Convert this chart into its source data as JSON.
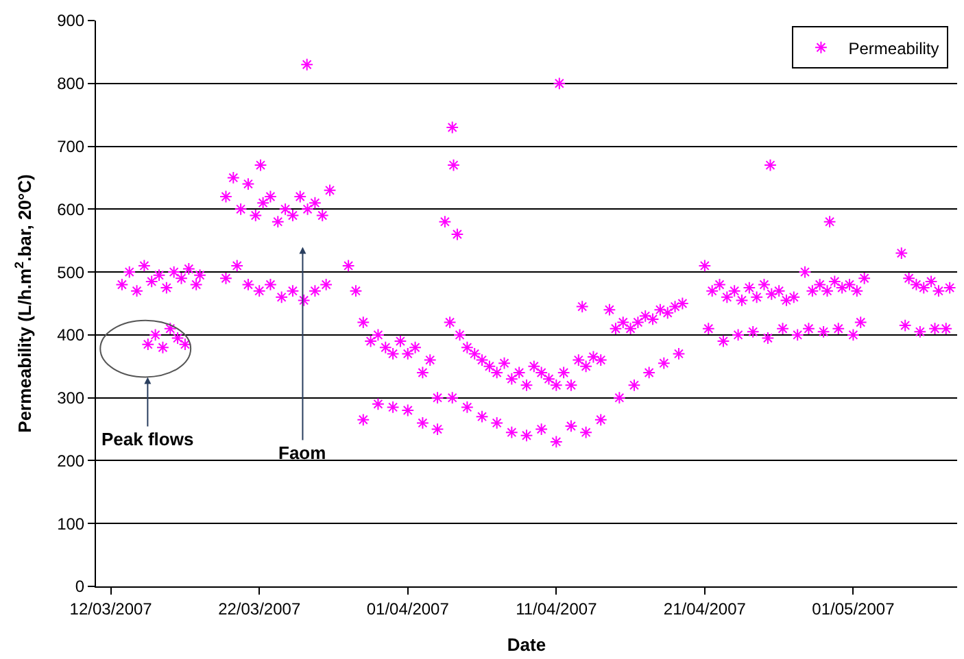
{
  "chart_data": {
    "type": "scatter",
    "xlabel": "Date",
    "ylabel": "Permeability (L/h.m$^{2}$.bar, 20°C)",
    "xlim": [
      "2007-03-11T00:00",
      "2007-05-08"
    ],
    "xticks": [
      {
        "value": "2007-03-12",
        "label": "12/03/2007"
      },
      {
        "value": "2007-03-22",
        "label": "22/03/2007"
      },
      {
        "value": "2007-04-01",
        "label": "01/04/2007"
      },
      {
        "value": "2007-04-11",
        "label": "11/04/2007"
      },
      {
        "value": "2007-04-21",
        "label": "21/04/2007"
      },
      {
        "value": "2007-05-01",
        "label": "01/05/2007"
      }
    ],
    "ylim": [
      0,
      900
    ],
    "yticks": [
      0,
      100,
      200,
      300,
      400,
      500,
      600,
      700,
      800,
      900
    ],
    "grid": "y",
    "legend": "top right",
    "marker": "cross",
    "annotations": [
      "Peak flows",
      "Faom"
    ],
    "series": [
      {
        "name": "Permeability",
        "color": "#ff00ff",
        "x": [
          "2007-03-12T18:00",
          "2007-03-13T06:00",
          "2007-03-13T18:00",
          "2007-03-14T06:00",
          "2007-03-14T18:00",
          "2007-03-15T06:00",
          "2007-03-15T18:00",
          "2007-03-16T06:00",
          "2007-03-16T18:00",
          "2007-03-17T06:00",
          "2007-03-17T18:00",
          "2007-03-18T00:00",
          "2007-03-14T12:00",
          "2007-03-15T00:00",
          "2007-03-15T12:00",
          "2007-03-16T00:00",
          "2007-03-16T12:00",
          "2007-03-17T00:00",
          "2007-03-19T18:00",
          "2007-03-20T06:00",
          "2007-03-20T18:00",
          "2007-03-21T06:00",
          "2007-03-21T18:00",
          "2007-03-22T06:00",
          "2007-03-22T18:00",
          "2007-03-23T06:00",
          "2007-03-23T18:00",
          "2007-03-24T06:00",
          "2007-03-24T18:00",
          "2007-03-25T06:00",
          "2007-03-25T18:00",
          "2007-03-26T06:00",
          "2007-03-26T18:00",
          "2007-03-19T18:00",
          "2007-03-20T12:00",
          "2007-03-21T06:00",
          "2007-03-22T00:00",
          "2007-03-22T18:00",
          "2007-03-23T12:00",
          "2007-03-24T06:00",
          "2007-03-25T00:00",
          "2007-03-25T18:00",
          "2007-03-26T12:00",
          "2007-03-22T02:00",
          "2007-03-25T05:00",
          "2007-03-28T00:00",
          "2007-03-28T12:00",
          "2007-03-29T00:00",
          "2007-03-29T12:00",
          "2007-03-30T00:00",
          "2007-03-30T12:00",
          "2007-03-31T00:00",
          "2007-03-31T12:00",
          "2007-04-01T00:00",
          "2007-04-01T12:00",
          "2007-04-02T00:00",
          "2007-04-02T12:00",
          "2007-04-03T00:00",
          "2007-04-03T12:00",
          "2007-04-04T00:00",
          "2007-04-04T02:00",
          "2007-04-03T20:00",
          "2007-04-04T08:00",
          "2007-04-04T12:00",
          "2007-04-05T00:00",
          "2007-04-05T12:00",
          "2007-04-06T00:00",
          "2007-04-06T12:00",
          "2007-04-07T00:00",
          "2007-04-07T12:00",
          "2007-04-08T00:00",
          "2007-04-08T12:00",
          "2007-04-09T00:00",
          "2007-04-09T12:00",
          "2007-04-10T00:00",
          "2007-04-10T12:00",
          "2007-04-11T00:00",
          "2007-04-11T12:00",
          "2007-04-12T00:00",
          "2007-04-12T12:00",
          "2007-04-13T00:00",
          "2007-04-13T12:00",
          "2007-04-14T00:00",
          "2007-04-11T05:00",
          "2007-04-12T18:00",
          "2007-03-29T00:00",
          "2007-03-30T00:00",
          "2007-03-31T00:00",
          "2007-04-01T00:00",
          "2007-04-02T00:00",
          "2007-04-03T00:00",
          "2007-04-04T00:00",
          "2007-04-05T00:00",
          "2007-04-06T00:00",
          "2007-04-07T00:00",
          "2007-04-08T00:00",
          "2007-04-09T00:00",
          "2007-04-10T00:00",
          "2007-04-11T00:00",
          "2007-04-12T00:00",
          "2007-04-13T00:00",
          "2007-04-14T00:00",
          "2007-04-14T14:00",
          "2007-04-15T00:00",
          "2007-04-15T12:00",
          "2007-04-16T00:00",
          "2007-04-16T12:00",
          "2007-04-17T00:00",
          "2007-04-17T12:00",
          "2007-04-18T00:00",
          "2007-04-18T12:00",
          "2007-04-19T00:00",
          "2007-04-19T12:00",
          "2007-04-15T06:00",
          "2007-04-16T06:00",
          "2007-04-17T06:00",
          "2007-04-18T06:00",
          "2007-04-19T06:00",
          "2007-04-21T00:00",
          "2007-04-21T12:00",
          "2007-04-22T00:00",
          "2007-04-22T12:00",
          "2007-04-23T00:00",
          "2007-04-23T12:00",
          "2007-04-24T00:00",
          "2007-04-24T12:00",
          "2007-04-25T00:00",
          "2007-04-25T12:00",
          "2007-04-26T00:00",
          "2007-04-26T12:00",
          "2007-04-27T00:00",
          "2007-04-25T10:00",
          "2007-04-21T06:00",
          "2007-04-22T06:00",
          "2007-04-23T06:00",
          "2007-04-24T06:00",
          "2007-04-25T06:00",
          "2007-04-26T06:00",
          "2007-04-27T06:00",
          "2007-04-27T18:00",
          "2007-04-28T06:00",
          "2007-04-28T18:00",
          "2007-04-29T06:00",
          "2007-04-29T18:00",
          "2007-04-30T06:00",
          "2007-04-30T18:00",
          "2007-05-01T06:00",
          "2007-05-01T18:00",
          "2007-04-29T10:00",
          "2007-04-28T00:00",
          "2007-04-29T00:00",
          "2007-04-30T00:00",
          "2007-05-01T00:00",
          "2007-05-01T12:00",
          "2007-05-04T06:00",
          "2007-05-04T18:00",
          "2007-05-05T06:00",
          "2007-05-05T18:00",
          "2007-05-06T06:00",
          "2007-05-06T18:00",
          "2007-05-07T12:00",
          "2007-05-04T12:00",
          "2007-05-05T12:00",
          "2007-05-06T12:00",
          "2007-05-07T06:00"
        ],
        "values": [
          480,
          500,
          470,
          510,
          485,
          495,
          475,
          500,
          490,
          505,
          480,
          495,
          385,
          400,
          380,
          410,
          395,
          385,
          620,
          650,
          600,
          640,
          590,
          610,
          620,
          580,
          600,
          590,
          620,
          600,
          610,
          590,
          630,
          490,
          510,
          480,
          470,
          480,
          460,
          470,
          455,
          470,
          480,
          670,
          830,
          510,
          470,
          420,
          390,
          400,
          380,
          370,
          390,
          370,
          380,
          340,
          360,
          300,
          580,
          730,
          670,
          420,
          560,
          400,
          380,
          370,
          360,
          350,
          340,
          355,
          330,
          340,
          320,
          350,
          340,
          330,
          320,
          340,
          320,
          360,
          350,
          365,
          360,
          800,
          445,
          265,
          290,
          285,
          280,
          260,
          250,
          300,
          285,
          270,
          260,
          245,
          240,
          250,
          230,
          255,
          245,
          265,
          440,
          410,
          420,
          410,
          420,
          430,
          425,
          440,
          435,
          445,
          450,
          300,
          320,
          340,
          355,
          370,
          510,
          470,
          480,
          460,
          470,
          455,
          475,
          460,
          480,
          465,
          470,
          455,
          460,
          670,
          410,
          390,
          400,
          405,
          395,
          410,
          400,
          500,
          470,
          480,
          470,
          485,
          475,
          480,
          470,
          490,
          580,
          410,
          405,
          410,
          400,
          420,
          530,
          490,
          480,
          475,
          485,
          470,
          475,
          415,
          405,
          410,
          410
        ]
      }
    ]
  }
}
